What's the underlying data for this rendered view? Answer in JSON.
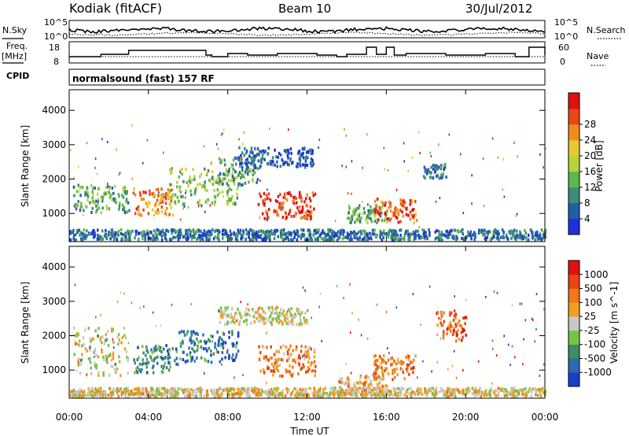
{
  "header": {
    "station": "Kodiak (fitACF)",
    "beam": "Beam 10",
    "date": "30/Jul/2012",
    "mode": "normalsound (fast) 157 RF"
  },
  "side_labels": {
    "nsky": "N.Sky",
    "freq_top": "Freq.",
    "freq_unit": "[MHz]",
    "cpid": "CPID",
    "nsearch": "N.Search",
    "nave": "Nave"
  },
  "noise_panel": {
    "ticks_left": [
      "10^5",
      "10^0"
    ],
    "ticks_right": [
      "10^5",
      "10^0"
    ]
  },
  "freq_panel": {
    "ticks_left": [
      "18",
      "8"
    ],
    "ticks_right": [
      "60",
      "0"
    ]
  },
  "x_axis": {
    "label": "Time UT",
    "ticks": [
      "00:00",
      "04:00",
      "08:00",
      "12:00",
      "16:00",
      "20:00",
      "00:00"
    ]
  },
  "chart_data": [
    {
      "type": "heatmap",
      "title": "",
      "ylabel": "Slant Range [km]",
      "xlabel": "",
      "yticks": [
        1000,
        2000,
        3000,
        4000
      ],
      "ylim": [
        180,
        4600
      ],
      "xlim_hours": [
        0,
        24
      ],
      "colorbar": {
        "label": "Power [dB]",
        "ticks": [
          4,
          8,
          12,
          16,
          20,
          24,
          28
        ],
        "colors": [
          "#1f2fe0",
          "#1f5fa8",
          "#3c8a78",
          "#5fb64a",
          "#b6d440",
          "#e6c830",
          "#f08c1e",
          "#e84818",
          "#e01010"
        ]
      },
      "regions": [
        {
          "t0": 0.2,
          "t1": 3.0,
          "r0": 1000,
          "r1": 1800,
          "level": 0.35
        },
        {
          "t0": 3.2,
          "t1": 5.2,
          "r0": 900,
          "r1": 1700,
          "level": 0.75
        },
        {
          "t0": 5.0,
          "t1": 8.5,
          "r0": 1200,
          "r1": 2300,
          "level": 0.45
        },
        {
          "t0": 7.5,
          "t1": 9.5,
          "r0": 1800,
          "r1": 2600,
          "level": 0.3
        },
        {
          "t0": 8.5,
          "t1": 12.3,
          "r0": 2300,
          "r1": 2900,
          "level": 0.15
        },
        {
          "t0": 9.5,
          "t1": 12.4,
          "r0": 800,
          "r1": 1600,
          "level": 0.9
        },
        {
          "t0": 14.0,
          "t1": 16.0,
          "r0": 700,
          "r1": 1200,
          "level": 0.35
        },
        {
          "t0": 15.3,
          "t1": 17.5,
          "r0": 700,
          "r1": 1400,
          "level": 0.8
        },
        {
          "t0": 17.8,
          "t1": 19.0,
          "r0": 2000,
          "r1": 2400,
          "level": 0.2
        },
        {
          "t0": 0.0,
          "t1": 24.0,
          "r0": 200,
          "r1": 500,
          "level": 0.2
        }
      ]
    },
    {
      "type": "heatmap",
      "title": "",
      "ylabel": "Slant Range [km]",
      "xlabel": "Time UT",
      "yticks": [
        1000,
        2000,
        3000,
        4000
      ],
      "ylim": [
        180,
        4600
      ],
      "xlim_hours": [
        0,
        24
      ],
      "colorbar": {
        "label": "Velocity [m s^-1]",
        "ticks": [
          1000,
          500,
          100,
          25,
          -25,
          -100,
          -500,
          -1000
        ],
        "colors": [
          "#1a3ec8",
          "#2a6ab0",
          "#3c8c66",
          "#76c442",
          "#c8c8c8",
          "#f0a020",
          "#f07818",
          "#e84414",
          "#e01010"
        ]
      },
      "regions": [
        {
          "t0": 0.2,
          "t1": 3.0,
          "r0": 800,
          "r1": 2200,
          "level": 0.5
        },
        {
          "t0": 3.2,
          "t1": 5.5,
          "r0": 900,
          "r1": 1700,
          "level": 0.25
        },
        {
          "t0": 5.5,
          "t1": 8.5,
          "r0": 1200,
          "r1": 2100,
          "level": 0.22
        },
        {
          "t0": 7.5,
          "t1": 12.0,
          "r0": 2300,
          "r1": 2800,
          "level": 0.5
        },
        {
          "t0": 9.5,
          "t1": 12.4,
          "r0": 800,
          "r1": 1700,
          "level": 0.7
        },
        {
          "t0": 13.5,
          "t1": 16.0,
          "r0": 200,
          "r1": 800,
          "level": 0.65
        },
        {
          "t0": 15.3,
          "t1": 17.5,
          "r0": 700,
          "r1": 1400,
          "level": 0.72
        },
        {
          "t0": 18.5,
          "t1": 20.0,
          "r0": 1800,
          "r1": 2700,
          "level": 0.8
        },
        {
          "t0": 0.0,
          "t1": 24.0,
          "r0": 200,
          "r1": 450,
          "level": 0.55
        }
      ]
    }
  ]
}
